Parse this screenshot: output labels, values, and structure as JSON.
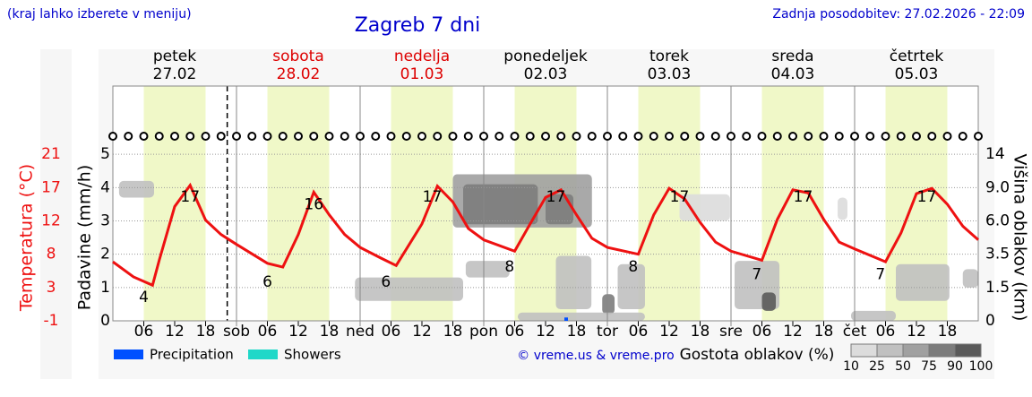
{
  "header": {
    "note": "(kraj lahko izberete v meniju)",
    "title": "Zagreb 7 dni",
    "updated": "Zadnja posodobitev: 27.02.2026 - 22:09"
  },
  "chart_data": {
    "type": "meteogram",
    "days": [
      {
        "name": "petek",
        "date": "27.02",
        "color": "#000000"
      },
      {
        "name": "sobota",
        "date": "28.02",
        "color": "#dd0000"
      },
      {
        "name": "nedelja",
        "date": "01.03",
        "color": "#dd0000"
      },
      {
        "name": "ponedeljek",
        "date": "02.03",
        "color": "#000000"
      },
      {
        "name": "torek",
        "date": "03.03",
        "color": "#000000"
      },
      {
        "name": "sreda",
        "date": "04.03",
        "color": "#000000"
      },
      {
        "name": "četrtek",
        "date": "05.03",
        "color": "#000000"
      }
    ],
    "xlim": [
      0,
      168
    ],
    "xticks": [
      {
        "value": 6,
        "label": "06"
      },
      12,
      18,
      {
        "value": 24,
        "label": "sob"
      },
      {
        "value": 30,
        "label": "06"
      },
      {
        "value": 36,
        "label": "12"
      },
      {
        "value": 42,
        "label": "18"
      },
      {
        "value": 48,
        "label": "ned"
      },
      {
        "value": 54,
        "label": "06"
      },
      {
        "value": 60,
        "label": "12"
      },
      {
        "value": 66,
        "label": "18"
      },
      {
        "value": 72,
        "label": "pon"
      },
      {
        "value": 78,
        "label": "06"
      },
      {
        "value": 84,
        "label": "12"
      },
      {
        "value": 90,
        "label": "18"
      },
      {
        "value": 96,
        "label": "tor"
      },
      {
        "value": 102,
        "label": "06"
      },
      {
        "value": 108,
        "label": "12"
      },
      {
        "value": 114,
        "label": "18"
      },
      {
        "value": 120,
        "label": "sre"
      },
      {
        "value": 126,
        "label": "06"
      },
      {
        "value": 132,
        "label": "12"
      },
      {
        "value": 138,
        "label": "18"
      },
      {
        "value": 144,
        "label": "čet"
      },
      {
        "value": 150,
        "label": "06"
      },
      {
        "value": 156,
        "label": "12"
      },
      {
        "value": 162,
        "label": "18"
      }
    ],
    "current_time": 22.2,
    "ylabel": "Padavine (mm/h)",
    "ylim": [
      0,
      5.3
    ],
    "yticks": [
      0,
      1,
      2,
      3,
      4,
      5
    ],
    "grid": true,
    "temperature": {
      "name": "Temperatura (°C)",
      "color": "#ee1111",
      "ylim": [
        -1,
        22.32
      ],
      "yticks": [
        -1,
        {
          "value": 3.4,
          "label": "3"
        },
        {
          "value": 7.8,
          "label": "8"
        },
        {
          "value": 12.2,
          "label": "12"
        },
        {
          "value": 16.6,
          "label": "17"
        },
        21
      ],
      "x": [
        0,
        4,
        7.7,
        9,
        12,
        15,
        18,
        21,
        24,
        30,
        33,
        36,
        39,
        42,
        45,
        48,
        52,
        55,
        60,
        63,
        66,
        69,
        72,
        78,
        81,
        84,
        87,
        90,
        93,
        96,
        102,
        105,
        108,
        111,
        114,
        117,
        120,
        126,
        129,
        132,
        135,
        138,
        141,
        144,
        150,
        153,
        156,
        159,
        162,
        165,
        168
      ],
      "values": [
        6.8,
        4.8,
        3.7,
        7,
        14.1,
        16.9,
        12.3,
        10.4,
        9.1,
        6.6,
        6.1,
        10.4,
        16,
        13,
        10.4,
        8.7,
        7.3,
        6.3,
        11.8,
        16.8,
        14.7,
        11.2,
        9.7,
        8.2,
        11.8,
        15.3,
        16.3,
        13,
        9.9,
        8.7,
        7.8,
        13,
        16.5,
        15.1,
        12,
        9.4,
        8.2,
        7,
        12.4,
        16.3,
        15.9,
        12.4,
        9.4,
        8.5,
        6.8,
        10.6,
        15.8,
        16.5,
        14.4,
        11.5,
        9.7
      ],
      "labels": [
        {
          "x": 6,
          "value": 4
        },
        {
          "x": 15,
          "value": 17
        },
        {
          "x": 30,
          "value": 6
        },
        {
          "x": 39,
          "value": 16
        },
        {
          "x": 53,
          "value": 6
        },
        {
          "x": 62,
          "value": 17
        },
        {
          "x": 77,
          "value": 8
        },
        {
          "x": 86,
          "value": 17
        },
        {
          "x": 101,
          "value": 8
        },
        {
          "x": 110,
          "value": 17
        },
        {
          "x": 125,
          "value": 7
        },
        {
          "x": 134,
          "value": 17
        },
        {
          "x": 149,
          "value": 7
        },
        {
          "x": 158,
          "value": 17
        }
      ]
    },
    "clouds": {
      "name": "Višina oblakov (km)",
      "ticks": [
        0,
        1.5,
        3.5,
        {
          "value": 6,
          "label": "6.0"
        },
        {
          "value": 9,
          "label": "9.0"
        },
        14
      ],
      "legend_title": "Gostota oblakov (%)",
      "levels": [
        10,
        25,
        50,
        75,
        90,
        100
      ],
      "colors": [
        "#dcdcdc",
        "#c0c0c0",
        "#a0a0a0",
        "#7c7c7c",
        "#5a5a5a"
      ],
      "patches": [
        {
          "x0": 1.2,
          "x1": 8,
          "bottom": 3.7,
          "top": 4.2,
          "density": 50
        },
        {
          "x0": 47,
          "x1": 68,
          "bottom": 0.6,
          "top": 1.3,
          "density": 30
        },
        {
          "x0": 66,
          "x1": 93,
          "bottom": 2.8,
          "top": 4.4,
          "density": 60
        },
        {
          "x0": 68,
          "x1": 82.5,
          "bottom": 2.9,
          "top": 4.1,
          "density": 85
        },
        {
          "x0": 84,
          "x1": 89.4,
          "bottom": 2.9,
          "top": 3.8,
          "density": 85
        },
        {
          "x0": 68.5,
          "x1": 77,
          "bottom": 1.3,
          "top": 1.8,
          "density": 30
        },
        {
          "x0": 86,
          "x1": 92.9,
          "bottom": 0.35,
          "top": 1.95,
          "density": 40
        },
        {
          "x0": 95,
          "x1": 97.4,
          "bottom": 0.2,
          "top": 0.8,
          "density": 80
        },
        {
          "x0": 78.6,
          "x1": 103.3,
          "bottom": 0,
          "top": 0.25,
          "density": 30
        },
        {
          "x0": 98,
          "x1": 103.3,
          "bottom": 0.35,
          "top": 1.7,
          "density": 30
        },
        {
          "x0": 110,
          "x1": 119.8,
          "bottom": 3,
          "top": 3.8,
          "density": 25
        },
        {
          "x0": 120.7,
          "x1": 129.4,
          "bottom": 0.35,
          "top": 1.8,
          "density": 40
        },
        {
          "x0": 126,
          "x1": 128.7,
          "bottom": 0.3,
          "top": 0.85,
          "density": 92
        },
        {
          "x0": 140.7,
          "x1": 142.6,
          "bottom": 3.03,
          "top": 3.7,
          "density": 15
        },
        {
          "x0": 143.3,
          "x1": 152,
          "bottom": 0,
          "top": 0.3,
          "density": 40
        },
        {
          "x0": 152,
          "x1": 162.4,
          "bottom": 0.6,
          "top": 1.7,
          "density": 40
        },
        {
          "x0": 165,
          "x1": 168,
          "bottom": 1,
          "top": 1.55,
          "density": 30
        }
      ]
    },
    "series": [
      {
        "name": "Precipitation",
        "color": "#0050ff",
        "x": [
          88
        ],
        "values": [
          0.1
        ]
      },
      {
        "name": "Showers",
        "color": "#20d8c8",
        "x": [],
        "values": []
      }
    ],
    "credit": "© vreme.us & vreme.pro"
  }
}
